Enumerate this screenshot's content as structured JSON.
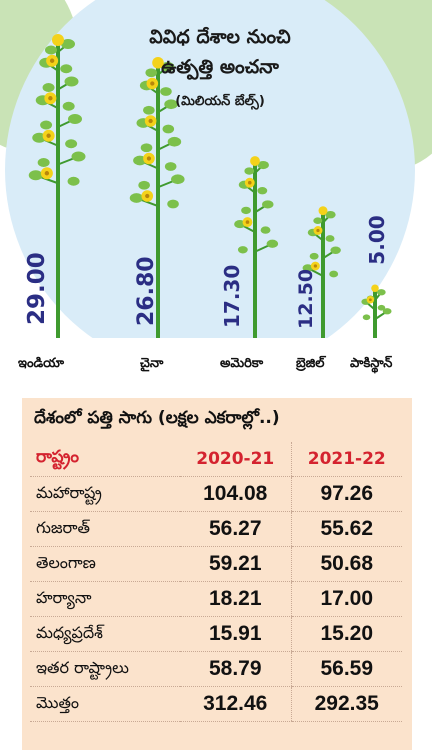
{
  "chart_data": [
    {
      "type": "bar",
      "title": "వివిధ దేశాల నుంచి",
      "subtitle": "ఉత్పత్తి అంచనా",
      "unit": "(మిలియన్ బేల్స్)",
      "categories": [
        "ఇండియా",
        "చైనా",
        "అమెరికా",
        "బ్రెజిల్",
        "పాకిస్థాన్"
      ],
      "values": [
        29.0,
        26.8,
        17.3,
        12.5,
        5.0
      ],
      "value_labels": [
        "29.00",
        "26.80",
        "17.30",
        "12.50",
        "5.00"
      ]
    },
    {
      "type": "table",
      "title": "దేశంలో పత్తి సాగు (లక్షల ఎకరాల్లో..)",
      "columns": [
        "రాష్ట్రం",
        "2020-21",
        "2021-22"
      ],
      "rows": [
        [
          "మహారాష్ట్ర",
          "104.08",
          "97.26"
        ],
        [
          "గుజరాత్",
          "56.27",
          "55.62"
        ],
        [
          "తెలంగాణ",
          "59.21",
          "50.68"
        ],
        [
          "హర్యానా",
          "18.21",
          "17.00"
        ],
        [
          "మధ్యప్రదేశ్",
          "15.91",
          "15.20"
        ],
        [
          "ఇతర రాష్ట్రాలు",
          "58.79",
          "56.59"
        ],
        [
          "మొత్తం",
          "312.46",
          "292.35"
        ]
      ]
    }
  ],
  "colors": {
    "stalk": "#3f9a2e",
    "leaf": "#7cc04b",
    "flower": "#f4d21a",
    "value_text": "#2b2e84",
    "circle": "#d9ecf8",
    "table_bg": "#fbe3cc",
    "table_header": "#d4232f"
  }
}
